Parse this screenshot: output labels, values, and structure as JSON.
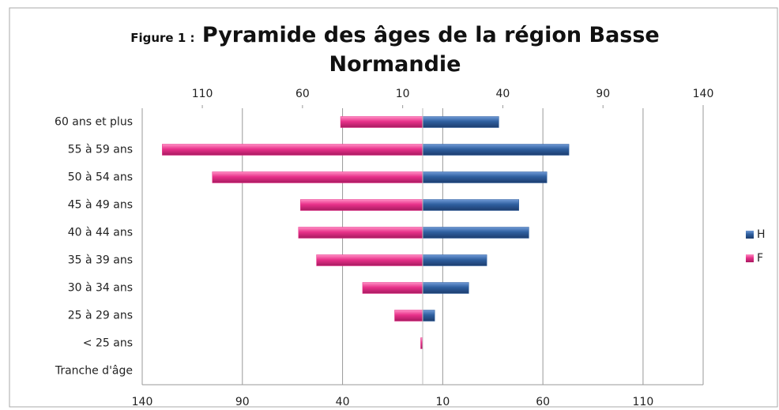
{
  "chart_data": {
    "type": "pyramid",
    "title_prefix": "Figure 1 :",
    "title": "Pyramide des âges de la région Basse Normandie",
    "categories": [
      "60 ans et plus",
      "55 à 59 ans",
      "50 à 54 ans",
      "45 à 49 ans",
      "40 à 44 ans",
      "35 à 39 ans",
      "30 à 34 ans",
      "25 à 29 ans",
      "< 25 ans",
      "Tranche d'âge"
    ],
    "series": [
      {
        "name": "H",
        "color": "#2f5f9f",
        "values": [
          38,
          73,
          62,
          48,
          53,
          32,
          23,
          6,
          0,
          0
        ]
      },
      {
        "name": "F",
        "color": "#e8318a",
        "values": [
          -41,
          -130,
          -105,
          -61,
          -62,
          -53,
          -30,
          -14,
          -1,
          0
        ]
      }
    ],
    "xlim": [
      -140,
      140
    ],
    "xticks": [
      {
        "value": -140,
        "label": "140"
      },
      {
        "value": -90,
        "label": "90"
      },
      {
        "value": -40,
        "label": "40"
      },
      10,
      60,
      110
    ],
    "x2ticks": [
      {
        "value": -110,
        "label": "110"
      },
      {
        "value": -60,
        "label": "60"
      },
      {
        "value": -10,
        "label": "10"
      },
      40,
      90,
      140
    ],
    "grid": true,
    "legend": "right"
  }
}
